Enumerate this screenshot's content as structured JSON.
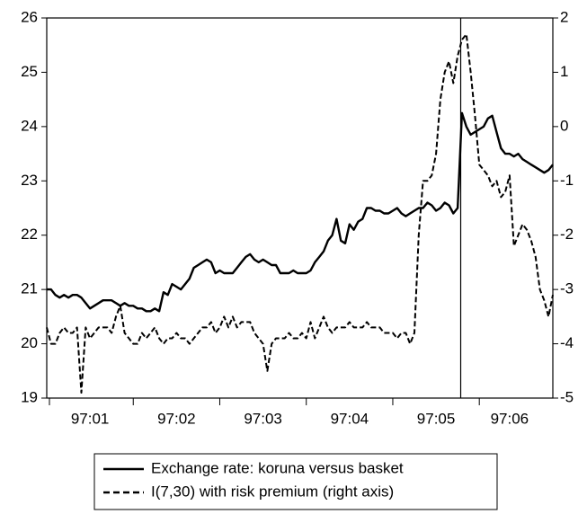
{
  "chart_data": {
    "type": "line",
    "categories": [
      null,
      null,
      null,
      null,
      null,
      null,
      null,
      null,
      null,
      null,
      "97:01",
      null,
      null,
      null,
      null,
      null,
      null,
      null,
      null,
      null,
      null,
      null,
      null,
      null,
      null,
      null,
      null,
      null,
      null,
      null,
      "97:02",
      null,
      null,
      null,
      null,
      null,
      null,
      null,
      null,
      null,
      null,
      null,
      null,
      null,
      null,
      null,
      null,
      null,
      null,
      null,
      "97:03",
      null,
      null,
      null,
      null,
      null,
      null,
      null,
      null,
      null,
      null,
      null,
      null,
      null,
      null,
      null,
      null,
      null,
      null,
      null,
      "97:04",
      null,
      null,
      null,
      null,
      null,
      null,
      null,
      null,
      null,
      null,
      null,
      null,
      null,
      null,
      null,
      null,
      null,
      null,
      null,
      "97:05",
      null,
      null,
      null,
      null,
      null,
      null,
      null,
      null,
      null,
      null,
      null,
      null,
      null,
      null,
      null,
      null,
      "97:06",
      null,
      null,
      null,
      null,
      null,
      null,
      null,
      null,
      null,
      null
    ],
    "series": [
      {
        "name": "Exchange rate: koruna versus basket",
        "color": "#000000",
        "dash": "solid",
        "values": [
          21.0,
          21.0,
          20.9,
          20.85,
          20.9,
          20.85,
          20.9,
          20.9,
          20.85,
          20.75,
          20.65,
          20.7,
          20.75,
          20.8,
          20.8,
          20.8,
          20.75,
          20.7,
          20.75,
          20.7,
          20.7,
          20.65,
          20.65,
          20.6,
          20.6,
          20.65,
          20.6,
          20.95,
          20.9,
          21.1,
          21.05,
          21.0,
          21.1,
          21.2,
          21.4,
          21.45,
          21.5,
          21.55,
          21.5,
          21.3,
          21.35,
          21.3,
          21.3,
          21.3,
          21.4,
          21.5,
          21.6,
          21.65,
          21.55,
          21.5,
          21.55,
          21.5,
          21.45,
          21.45,
          21.3,
          21.3,
          21.3,
          21.35,
          21.3,
          21.3,
          21.3,
          21.35,
          21.5,
          21.6,
          21.7,
          21.9,
          22.0,
          22.3,
          21.9,
          21.85,
          22.2,
          22.1,
          22.25,
          22.3,
          22.5,
          22.5,
          22.45,
          22.45,
          22.4,
          22.4,
          22.45,
          22.5,
          22.4,
          22.35,
          22.4,
          22.45,
          22.5,
          22.5,
          22.6,
          22.55,
          22.45,
          22.5,
          22.6,
          22.55,
          22.4,
          22.5,
          24.25,
          24.0,
          23.85,
          23.9,
          23.95,
          24.0,
          24.15,
          24.2,
          23.9,
          23.6,
          23.5,
          23.5,
          23.45,
          23.5,
          23.4,
          23.35,
          23.3,
          23.25,
          23.2,
          23.15,
          23.2,
          23.3
        ]
      },
      {
        "name": "I(7,30) with risk premium (right axis)",
        "color": "#000000",
        "dash": "dashed",
        "axis": "y2",
        "values": [
          -3.7,
          -4.0,
          -4.0,
          -3.8,
          -3.7,
          -3.8,
          -3.8,
          -3.7,
          -4.9,
          -3.7,
          -3.9,
          -3.8,
          -3.7,
          -3.7,
          -3.7,
          -3.8,
          -3.5,
          -3.3,
          -3.8,
          -3.9,
          -4.0,
          -4.0,
          -3.8,
          -3.9,
          -3.8,
          -3.7,
          -3.9,
          -4.0,
          -3.9,
          -3.9,
          -3.8,
          -3.9,
          -3.9,
          -4.0,
          -3.9,
          -3.8,
          -3.7,
          -3.7,
          -3.6,
          -3.8,
          -3.7,
          -3.5,
          -3.7,
          -3.5,
          -3.7,
          -3.6,
          -3.6,
          -3.6,
          -3.8,
          -3.9,
          -4.0,
          -4.5,
          -4.0,
          -3.9,
          -3.9,
          -3.9,
          -3.8,
          -3.9,
          -3.9,
          -3.8,
          -3.9,
          -3.6,
          -3.9,
          -3.7,
          -3.5,
          -3.7,
          -3.8,
          -3.7,
          -3.7,
          -3.7,
          -3.6,
          -3.7,
          -3.7,
          -3.7,
          -3.6,
          -3.7,
          -3.7,
          -3.7,
          -3.8,
          -3.8,
          -3.8,
          -3.9,
          -3.8,
          -3.8,
          -4.0,
          -3.8,
          -2.0,
          -1.0,
          -1.0,
          -0.9,
          -0.5,
          0.5,
          1.0,
          1.2,
          0.8,
          1.3,
          1.6,
          1.7,
          1.0,
          0.2,
          -0.7,
          -0.8,
          -0.9,
          -1.1,
          -1.0,
          -1.3,
          -1.2,
          -0.9,
          -2.2,
          -2.0,
          -1.8,
          -1.9,
          -2.1,
          -2.4,
          -3.0,
          -3.2,
          -3.5,
          -3.1
        ]
      }
    ],
    "ylim": [
      19,
      26
    ],
    "yticks": [
      19,
      20,
      21,
      22,
      23,
      24,
      25,
      26
    ],
    "y2lim": [
      -5,
      2
    ],
    "y2ticks": [
      -5,
      -4,
      -3,
      -2,
      -1,
      0,
      1,
      2
    ]
  }
}
